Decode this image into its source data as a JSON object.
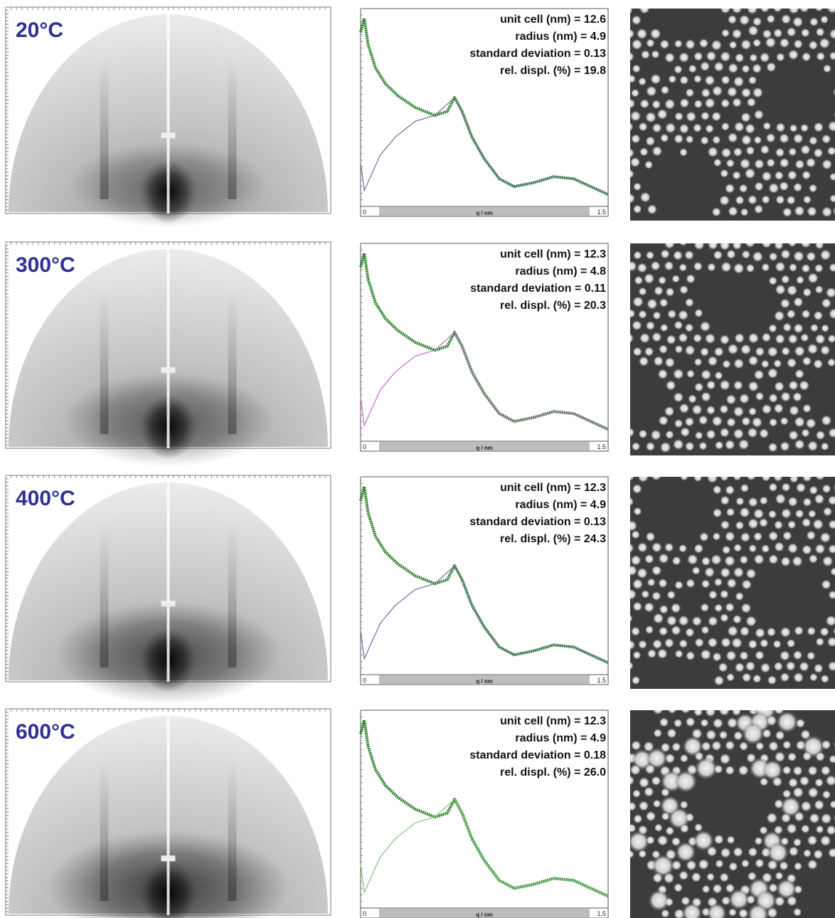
{
  "panels": [
    {
      "temperature": "20°C",
      "fit": [
        "unit cell (nm) = 12.6",
        "radius (nm) = 4.9",
        "standard deviation = 0.13",
        "rel. displ. (%) = 19.8"
      ],
      "axis": {
        "start": "0",
        "label": "q / nm",
        "end": "1.5"
      }
    },
    {
      "temperature": "300°C",
      "fit": [
        "unit cell (nm) = 12.3",
        "radius (nm) = 4.8",
        "standard deviation = 0.11",
        "rel. displ. (%) = 20.3"
      ],
      "axis": {
        "start": "0",
        "label": "q / nm",
        "end": "1.5"
      }
    },
    {
      "temperature": "400°C",
      "fit": [
        "unit cell (nm) = 12.3",
        "radius (nm) = 4.9",
        "standard deviation = 0.13",
        "rel. displ. (%) = 24.3"
      ],
      "axis": {
        "start": "0",
        "label": "q / nm",
        "end": "1.5"
      }
    },
    {
      "temperature": "600°C",
      "fit": [
        "unit cell (nm) = 12.3",
        "radius (nm) = 4.9",
        "standard deviation = 0.18",
        "rel. displ. (%) = 26.0"
      ],
      "axis": {
        "start": "0",
        "label": "q / nm",
        "end": "1.5"
      }
    }
  ]
}
